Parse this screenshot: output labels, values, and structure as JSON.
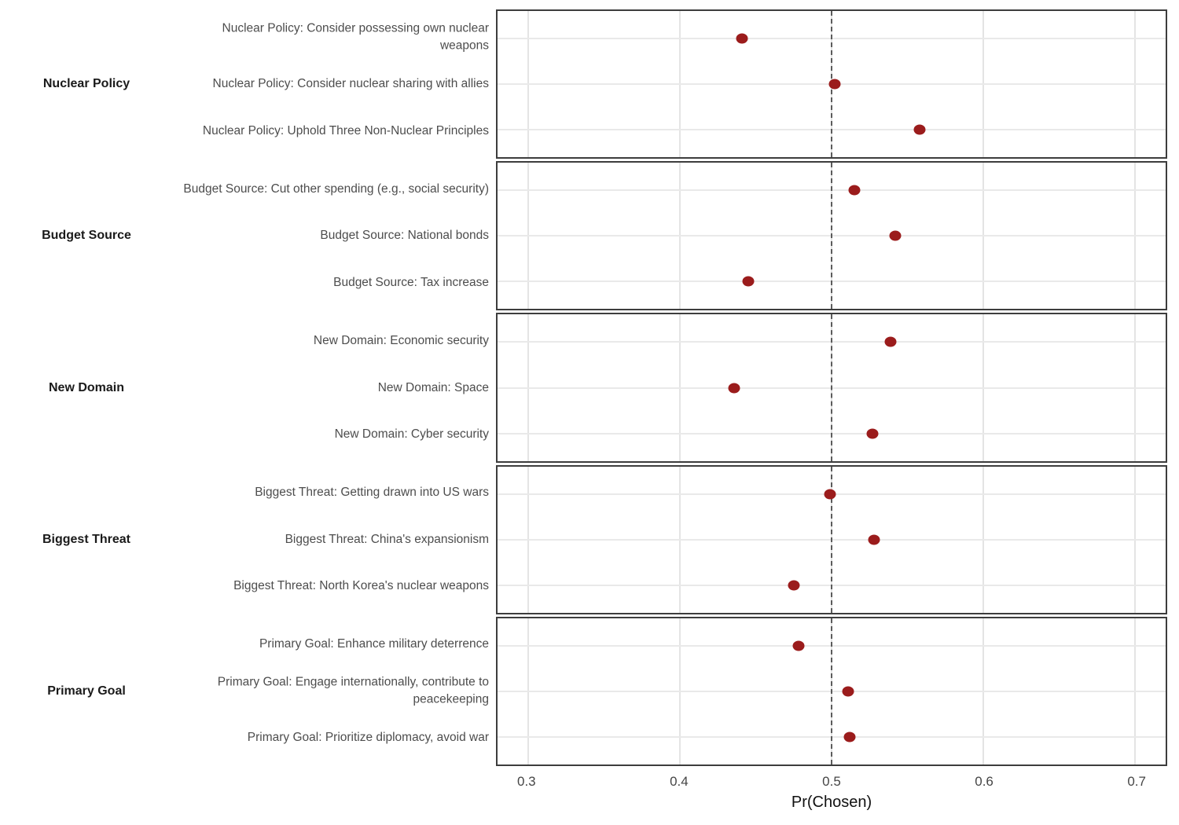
{
  "chart_data": {
    "type": "scatter",
    "title": "",
    "xlabel": "Pr(Chosen)",
    "ylabel": "",
    "xlim": [
      0.28,
      0.72
    ],
    "x_ticks": [
      {
        "value": 0.3,
        "label": "0.3"
      },
      {
        "value": 0.4,
        "label": "0.4"
      },
      {
        "value": 0.5,
        "label": "0.5"
      },
      {
        "value": 0.6,
        "label": "0.6"
      },
      {
        "value": 0.7,
        "label": "0.7"
      }
    ],
    "reference_line_x": 0.5,
    "grid": "major-only",
    "legend_position": "none",
    "facets": [
      {
        "label": "Nuclear Policy",
        "rows": [
          {
            "label": "Nuclear Policy: Consider possessing own nuclear weapons",
            "value": 0.441
          },
          {
            "label": "Nuclear Policy: Consider nuclear sharing with allies",
            "value": 0.502
          },
          {
            "label": "Nuclear Policy: Uphold Three Non-Nuclear Principles",
            "value": 0.558
          }
        ]
      },
      {
        "label": "Budget Source",
        "rows": [
          {
            "label": "Budget Source: Cut other spending (e.g., social security)",
            "value": 0.515
          },
          {
            "label": "Budget Source: National bonds",
            "value": 0.542
          },
          {
            "label": "Budget Source: Tax increase",
            "value": 0.445
          }
        ]
      },
      {
        "label": "New Domain",
        "rows": [
          {
            "label": "New Domain: Economic security",
            "value": 0.539
          },
          {
            "label": "New Domain: Space",
            "value": 0.436
          },
          {
            "label": "New Domain: Cyber security",
            "value": 0.527
          }
        ]
      },
      {
        "label": "Biggest Threat",
        "rows": [
          {
            "label": "Biggest Threat: Getting drawn into US wars",
            "value": 0.499
          },
          {
            "label": "Biggest Threat: China's expansionism",
            "value": 0.528
          },
          {
            "label": "Biggest Threat: North Korea's nuclear weapons",
            "value": 0.475
          }
        ]
      },
      {
        "label": "Primary Goal",
        "rows": [
          {
            "label": "Primary Goal: Enhance military deterrence",
            "value": 0.478
          },
          {
            "label": "Primary Goal: Engage internationally, contribute to peacekeeping",
            "value": 0.511
          },
          {
            "label": "Primary Goal: Prioritize diplomacy, avoid war",
            "value": 0.512
          }
        ]
      }
    ],
    "colors": {
      "point": "#9b1c1c",
      "reference_line": "#5c5c5c",
      "panel_border": "#3d3d3d",
      "gridline": "#e6e6e6",
      "row_label_text": "#4d4d4d",
      "facet_label_text": "#1a1a1a",
      "tick_label_text": "#454545",
      "axis_title_text": "#111111"
    },
    "row_positions_pct": [
      18.75,
      50,
      81.25
    ]
  }
}
